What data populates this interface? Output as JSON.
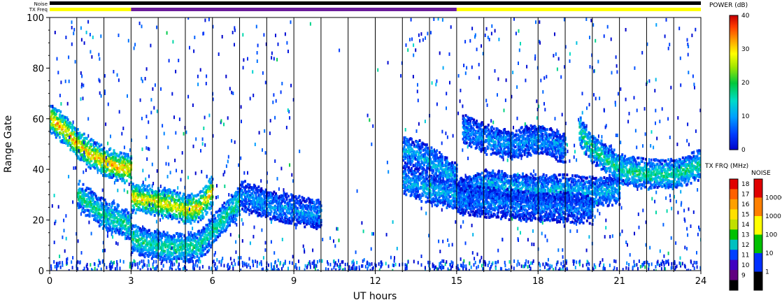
{
  "chart_data": {
    "type": "heatmap",
    "xlabel": "UT hours",
    "ylabel": "Range Gate",
    "xlim": [
      0,
      24
    ],
    "ylim": [
      0,
      100
    ],
    "x_ticks": [
      "0",
      "3",
      "6",
      "9",
      "12",
      "15",
      "18",
      "21",
      "24"
    ],
    "y_ticks": [
      "0",
      "20",
      "40",
      "60",
      "80",
      "100"
    ],
    "hour_gridlines": [
      1,
      2,
      3,
      4,
      5,
      6,
      7,
      8,
      9,
      10,
      11,
      12,
      13,
      14,
      15,
      16,
      17,
      18,
      19,
      20,
      21,
      22,
      23
    ],
    "top_bars": {
      "noise_label": "Noise",
      "txfreq_label": "TX Freq",
      "txfreq_segments": [
        {
          "start": 0,
          "end": 3,
          "color": "#ffff00"
        },
        {
          "start": 3,
          "end": 15,
          "color": "#6a1b9a"
        },
        {
          "start": 15,
          "end": 24,
          "color": "#ffff00"
        }
      ]
    },
    "power_colorbar": {
      "title": "POWER (dB)",
      "ticks": [
        "40",
        "30",
        "20",
        "10",
        "0"
      ],
      "range": [
        0,
        40
      ]
    },
    "txfreq_colorbar": {
      "title": "TX FRQ (MHz)",
      "ticks": [
        "18",
        "17",
        "16",
        "15",
        "14",
        "13",
        "12",
        "11",
        "10",
        "9"
      ],
      "colors": [
        "#e00000",
        "#ff6000",
        "#ffa000",
        "#ffe000",
        "#c0e000",
        "#00c000",
        "#00c0c0",
        "#0040ff",
        "#4000c0",
        "#600080",
        "#000000"
      ]
    },
    "noise_colorbar": {
      "title": "NOISE",
      "ticks": [
        "10000",
        "1000",
        "100",
        "10",
        "1"
      ],
      "colors": [
        "#e00000",
        "#ff8000",
        "#ffff00",
        "#00c000",
        "#0030ff",
        "#000000"
      ]
    },
    "echo_bands": [
      {
        "name": "",
        "points": [
          [
            0,
            60
          ],
          [
            0.5,
            56
          ],
          [
            1,
            50
          ],
          [
            1.5,
            46
          ],
          [
            2,
            43
          ],
          [
            2.5,
            41
          ],
          [
            3,
            40
          ]
        ],
        "power": 32
      },
      {
        "name": "",
        "points": [
          [
            1,
            30
          ],
          [
            1.5,
            26
          ],
          [
            2,
            22
          ],
          [
            2.5,
            20
          ],
          [
            3,
            17
          ]
        ],
        "power": 18
      },
      {
        "name": "",
        "points": [
          [
            3,
            29
          ],
          [
            3.5,
            28
          ],
          [
            4,
            27
          ],
          [
            4.5,
            26
          ],
          [
            5,
            24
          ],
          [
            5.5,
            25
          ],
          [
            6,
            32
          ]
        ],
        "power": 30
      },
      {
        "name": "",
        "points": [
          [
            3,
            13
          ],
          [
            3.5,
            11
          ],
          [
            4,
            10
          ],
          [
            4.5,
            9
          ],
          [
            5,
            9
          ],
          [
            5.5,
            10
          ],
          [
            6,
            16
          ],
          [
            6.5,
            22
          ],
          [
            7,
            28
          ]
        ],
        "power": 18
      },
      {
        "name": "",
        "points": [
          [
            7,
            30
          ],
          [
            8,
            26
          ],
          [
            9,
            24
          ],
          [
            10,
            22
          ]
        ],
        "power": 10
      },
      {
        "name": "",
        "points": [
          [
            13,
            48
          ],
          [
            13.5,
            46
          ],
          [
            14,
            43
          ],
          [
            14.5,
            40
          ],
          [
            15,
            36
          ]
        ],
        "power": 12
      },
      {
        "name": "",
        "points": [
          [
            13,
            36
          ],
          [
            14,
            32
          ],
          [
            15,
            30
          ],
          [
            16,
            34
          ],
          [
            17,
            33
          ],
          [
            18,
            32
          ],
          [
            19,
            32
          ],
          [
            20,
            31
          ],
          [
            21,
            32
          ]
        ],
        "power": 12
      },
      {
        "name": "",
        "points": [
          [
            15,
            28
          ],
          [
            16,
            27
          ],
          [
            17,
            26
          ],
          [
            18,
            25
          ],
          [
            19,
            25
          ],
          [
            20,
            24
          ]
        ],
        "power": 8
      },
      {
        "name": "",
        "points": [
          [
            15.2,
            56
          ],
          [
            16,
            52
          ],
          [
            17,
            50
          ],
          [
            18,
            52
          ],
          [
            19,
            48
          ]
        ],
        "power": 10
      },
      {
        "name": "",
        "points": [
          [
            19.5,
            55
          ],
          [
            20,
            48
          ],
          [
            20.5,
            44
          ],
          [
            21,
            40
          ],
          [
            21.5,
            39
          ],
          [
            22,
            38
          ],
          [
            22.5,
            38
          ],
          [
            23,
            38
          ],
          [
            23.5,
            40
          ],
          [
            24,
            42
          ]
        ],
        "power": 18
      }
    ]
  }
}
